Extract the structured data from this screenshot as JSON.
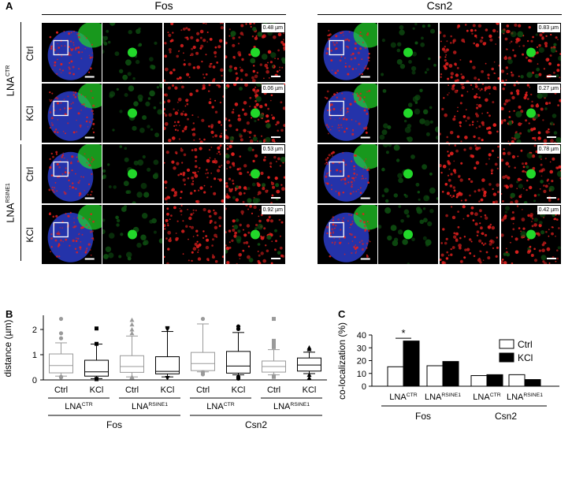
{
  "panel_a": {
    "letter": "A",
    "group_left": "Fos",
    "group_right": "Csn2",
    "row_groups": [
      {
        "base": "LNA",
        "sup": "CTR"
      },
      {
        "base": "LNA",
        "sup": "RSINE1"
      }
    ],
    "row_labels": [
      "Ctrl",
      "KCl",
      "Ctrl",
      "KCl"
    ],
    "distances_left": [
      "0.48 µm",
      "0.06 µm",
      "0.53 µm",
      "0.92 µm"
    ],
    "distances_right": [
      "0.83 µm",
      "0.27 µm",
      "0.78 µm",
      "0.42 µm"
    ],
    "colors": {
      "nucleus": "#2a3cc8",
      "signal_green": "#22d82a",
      "signal_red": "#e0201e"
    }
  },
  "chart_data": [
    {
      "type": "box",
      "panel": "B",
      "ylabel": "distance (µm)",
      "ylim": [
        0,
        2.5
      ],
      "yticks": [
        0,
        1,
        2
      ],
      "categories": [
        "Ctrl",
        "KCl",
        "Ctrl",
        "KCl",
        "Ctrl",
        "KCl",
        "Ctrl",
        "KCl"
      ],
      "subgroups": [
        {
          "base": "LNA",
          "sup": "CTR"
        },
        {
          "base": "LNA",
          "sup": "RSINE1"
        },
        {
          "base": "LNA",
          "sup": "CTR"
        },
        {
          "base": "LNA",
          "sup": "RSINE1"
        }
      ],
      "groups": [
        "Fos",
        "Csn2"
      ],
      "boxes": [
        {
          "min": 0.15,
          "q1": 0.28,
          "median": 0.57,
          "q3": 1.03,
          "max": 1.47,
          "outliers": [
            1.65,
            1.85,
            2.42,
            0.12,
            0.1
          ],
          "color": "#9a9a9a",
          "marker": "circle"
        },
        {
          "min": 0.05,
          "q1": 0.15,
          "median": 0.32,
          "q3": 0.78,
          "max": 1.42,
          "outliers": [
            1.43,
            2.04,
            0.04,
            0.03
          ],
          "color": "#000000",
          "marker": "square"
        },
        {
          "min": 0.12,
          "q1": 0.3,
          "median": 0.53,
          "q3": 0.96,
          "max": 1.74,
          "outliers": [
            1.85,
            2.0,
            2.2,
            2.38,
            0.12,
            0.1
          ],
          "color": "#9a9a9a",
          "marker": "triangle"
        },
        {
          "min": 0.12,
          "q1": 0.24,
          "median": 0.34,
          "q3": 0.92,
          "max": 1.92,
          "outliers": [
            2.0,
            2.05,
            0.08,
            0.08
          ],
          "color": "#000000",
          "marker": "triangle-down"
        },
        {
          "min": 0.32,
          "q1": 0.37,
          "median": 0.65,
          "q3": 1.09,
          "max": 2.22,
          "outliers": [
            2.42,
            0.3,
            0.22
          ],
          "color": "#9a9a9a",
          "marker": "circle"
        },
        {
          "min": 0.2,
          "q1": 0.27,
          "median": 0.55,
          "q3": 1.13,
          "max": 1.88,
          "outliers": [
            2.02,
            2.12,
            0.12,
            0.05
          ],
          "color": "#000000",
          "marker": "circle"
        },
        {
          "min": 0.2,
          "q1": 0.31,
          "median": 0.53,
          "q3": 0.75,
          "max": 1.2,
          "outliers": [
            1.3,
            1.45,
            1.55,
            2.42,
            0.15,
            0.12
          ],
          "color": "#9a9a9a",
          "marker": "square"
        },
        {
          "min": 0.25,
          "q1": 0.35,
          "median": 0.59,
          "q3": 0.87,
          "max": 1.1,
          "outliers": [
            1.22,
            1.28,
            0.2,
            0.08
          ],
          "color": "#000000",
          "marker": "triangle"
        }
      ]
    },
    {
      "type": "bar",
      "panel": "C",
      "ylabel": "co-localization (%)",
      "ylim": [
        0,
        40
      ],
      "yticks": [
        0,
        10,
        20,
        30,
        40
      ],
      "categories": [
        {
          "base": "LNA",
          "sup": "CTR"
        },
        {
          "base": "LNA",
          "sup": "RSINE1"
        },
        {
          "base": "LNA",
          "sup": "CTR"
        },
        {
          "base": "LNA",
          "sup": "RSINE1"
        }
      ],
      "groups": [
        "Fos",
        "Csn2"
      ],
      "series": [
        {
          "name": "Ctrl",
          "values": [
            15.2,
            16.0,
            8.3,
            9.0
          ],
          "color": "#ffffff"
        },
        {
          "name": "KCl",
          "values": [
            35.3,
            19.3,
            9.0,
            5.2
          ],
          "color": "#000000"
        }
      ],
      "annotation": "*",
      "legend": "top-right"
    }
  ]
}
